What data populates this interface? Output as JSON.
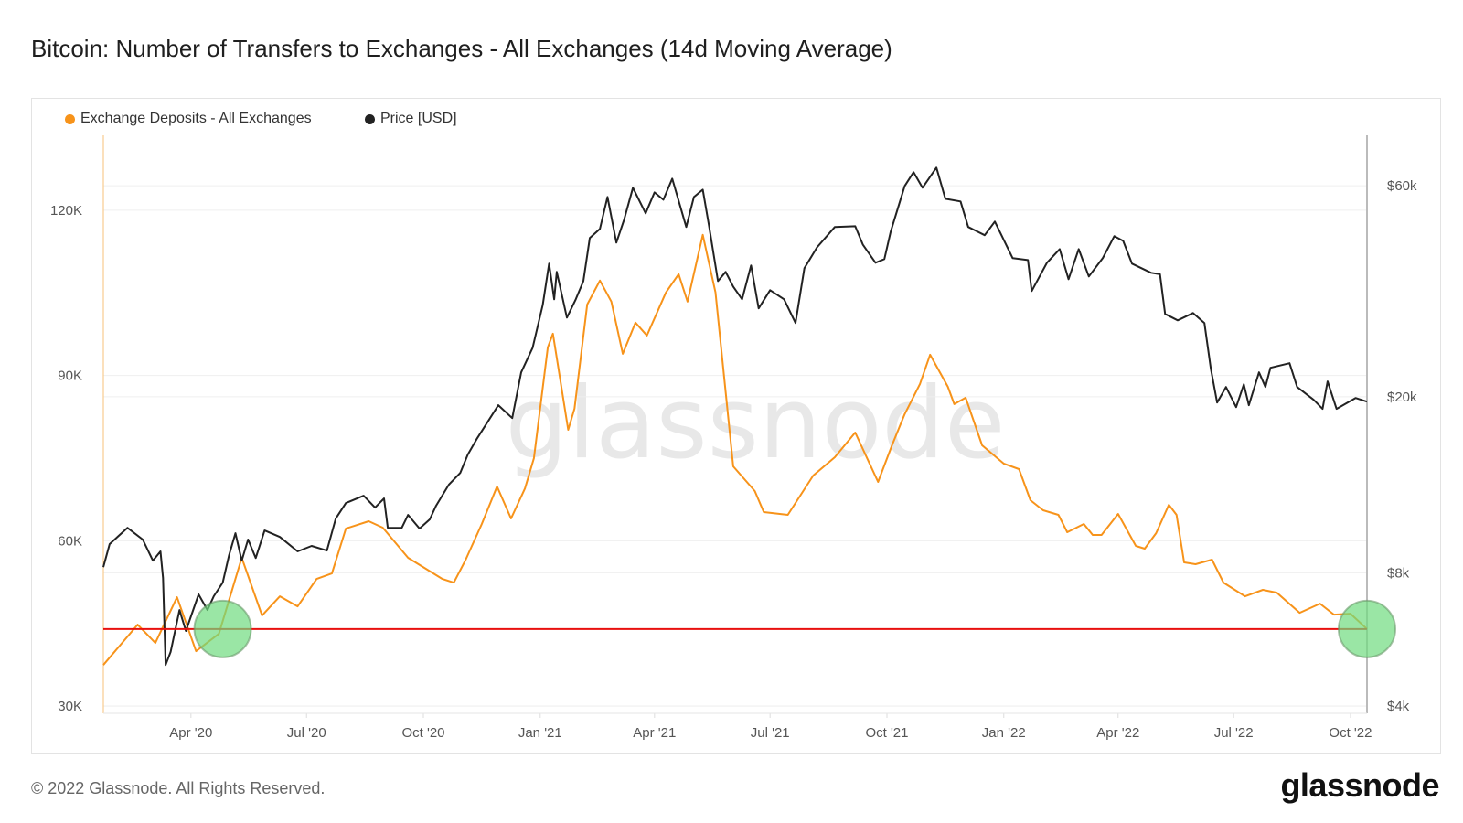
{
  "title": "Bitcoin: Number of Transfers to Exchanges - All Exchanges (14d Moving Average)",
  "footer": "© 2022 Glassnode. All Rights Reserved.",
  "logo": "glassnode",
  "watermark": "glassnode",
  "chart_data": {
    "type": "line",
    "title": "Bitcoin: Number of Transfers to Exchanges - All Exchanges (14d Moving Average)",
    "legend_position": "top-left",
    "grid": true,
    "x_range": [
      "2020-01-23",
      "2022-10-14"
    ],
    "x_ticks": [
      {
        "date": "2020-04-01",
        "label": "Apr '20"
      },
      {
        "date": "2020-07-01",
        "label": "Jul '20"
      },
      {
        "date": "2020-10-01",
        "label": "Oct '20"
      },
      {
        "date": "2021-01-01",
        "label": "Jan '21"
      },
      {
        "date": "2021-04-01",
        "label": "Apr '21"
      },
      {
        "date": "2021-07-01",
        "label": "Jul '21"
      },
      {
        "date": "2021-10-01",
        "label": "Oct '21"
      },
      {
        "date": "2022-01-01",
        "label": "Jan '22"
      },
      {
        "date": "2022-04-01",
        "label": "Apr '22"
      },
      {
        "date": "2022-07-01",
        "label": "Jul '22"
      },
      {
        "date": "2022-10-01",
        "label": "Oct '22"
      }
    ],
    "y_left": {
      "scale": "linear",
      "range": [
        28700,
        133600
      ],
      "ticks": [
        {
          "value": 30000,
          "label": "30K"
        },
        {
          "value": 60000,
          "label": "60K"
        },
        {
          "value": 90000,
          "label": "90K"
        },
        {
          "value": 120000,
          "label": "120K"
        }
      ]
    },
    "y_right": {
      "scale": "log",
      "range": [
        3850,
        78000
      ],
      "ticks": [
        {
          "value": 4000,
          "label": "$4k"
        },
        {
          "value": 8000,
          "label": "$8k"
        },
        {
          "value": 20000,
          "label": "$20k"
        },
        {
          "value": 60000,
          "label": "$60k"
        }
      ]
    },
    "reference_line": {
      "value": 44000,
      "axis": "left",
      "color": "#e8100f"
    },
    "highlights": [
      {
        "date": "2020-04-26",
        "value": 44000
      },
      {
        "date": "2022-10-14",
        "value": 44000
      }
    ],
    "highlight_color": "#6fdc7f",
    "series": [
      {
        "name": "Exchange Deposits - All Exchanges",
        "axis": "left",
        "color": "#f7931a",
        "points": [
          [
            "2020-01-23",
            37470
          ],
          [
            "2020-02-19",
            44780
          ],
          [
            "2020-03-04",
            41460
          ],
          [
            "2020-03-21",
            49770
          ],
          [
            "2020-04-05",
            39970
          ],
          [
            "2020-04-23",
            43120
          ],
          [
            "2020-05-11",
            56910
          ],
          [
            "2020-05-27",
            46440
          ],
          [
            "2020-06-10",
            49930
          ],
          [
            "2020-06-24",
            48100
          ],
          [
            "2020-07-09",
            53090
          ],
          [
            "2020-07-21",
            54080
          ],
          [
            "2020-08-01",
            62220
          ],
          [
            "2020-08-19",
            63550
          ],
          [
            "2020-08-30",
            62390
          ],
          [
            "2020-09-19",
            56910
          ],
          [
            "2020-10-16",
            53090
          ],
          [
            "2020-10-25",
            52420
          ],
          [
            "2020-11-03",
            56410
          ],
          [
            "2020-11-16",
            63050
          ],
          [
            "2020-11-28",
            69860
          ],
          [
            "2020-12-09",
            64050
          ],
          [
            "2020-12-20",
            69500
          ],
          [
            "2020-12-27",
            75000
          ],
          [
            "2021-01-07",
            95110
          ],
          [
            "2021-01-11",
            97600
          ],
          [
            "2021-01-23",
            80160
          ],
          [
            "2021-01-28",
            83980
          ],
          [
            "2021-02-07",
            102900
          ],
          [
            "2021-02-17",
            107240
          ],
          [
            "2021-02-26",
            103420
          ],
          [
            "2021-03-07",
            93950
          ],
          [
            "2021-03-17",
            99600
          ],
          [
            "2021-03-26",
            97270
          ],
          [
            "2021-04-10",
            105080
          ],
          [
            "2021-04-20",
            108400
          ],
          [
            "2021-04-27",
            103420
          ],
          [
            "2021-05-09",
            115540
          ],
          [
            "2021-05-19",
            105080
          ],
          [
            "2021-06-02",
            73520
          ],
          [
            "2021-06-19",
            69030
          ],
          [
            "2021-06-26",
            65210
          ],
          [
            "2021-07-15",
            64720
          ],
          [
            "2021-08-04",
            71860
          ],
          [
            "2021-08-21",
            75180
          ],
          [
            "2021-09-06",
            79660
          ],
          [
            "2021-09-24",
            70690
          ],
          [
            "2021-10-05",
            77340
          ],
          [
            "2021-10-15",
            82990
          ],
          [
            "2021-10-27",
            88470
          ],
          [
            "2021-11-04",
            93780
          ],
          [
            "2021-11-18",
            87970
          ],
          [
            "2021-11-23",
            84810
          ],
          [
            "2021-12-02",
            85980
          ],
          [
            "2021-12-15",
            77340
          ],
          [
            "2022-01-01",
            74020
          ],
          [
            "2022-01-13",
            73020
          ],
          [
            "2022-01-22",
            67370
          ],
          [
            "2022-02-01",
            65550
          ],
          [
            "2022-02-13",
            64720
          ],
          [
            "2022-02-20",
            61560
          ],
          [
            "2022-03-05",
            63050
          ],
          [
            "2022-03-12",
            61060
          ],
          [
            "2022-03-19",
            61060
          ],
          [
            "2022-04-01",
            64880
          ],
          [
            "2022-04-15",
            59070
          ],
          [
            "2022-04-22",
            58570
          ],
          [
            "2022-05-01",
            61390
          ],
          [
            "2022-05-11",
            66540
          ],
          [
            "2022-05-17",
            64720
          ],
          [
            "2022-05-23",
            56080
          ],
          [
            "2022-06-01",
            55750
          ],
          [
            "2022-06-14",
            56580
          ],
          [
            "2022-06-23",
            52420
          ],
          [
            "2022-07-10",
            49930
          ],
          [
            "2022-07-24",
            51100
          ],
          [
            "2022-08-04",
            50600
          ],
          [
            "2022-08-22",
            46940
          ],
          [
            "2022-09-07",
            48600
          ],
          [
            "2022-09-18",
            46610
          ],
          [
            "2022-10-01",
            46780
          ],
          [
            "2022-10-14",
            44000
          ]
        ]
      },
      {
        "name": "Price [USD]",
        "axis": "right",
        "color": "#222222",
        "points": [
          [
            "2020-01-23",
            8240
          ],
          [
            "2020-01-28",
            9290
          ],
          [
            "2020-02-11",
            10110
          ],
          [
            "2020-02-23",
            9510
          ],
          [
            "2020-03-02",
            8520
          ],
          [
            "2020-03-08",
            8940
          ],
          [
            "2020-03-10",
            7790
          ],
          [
            "2020-03-12",
            4950
          ],
          [
            "2020-03-16",
            5300
          ],
          [
            "2020-03-23",
            6590
          ],
          [
            "2020-03-28",
            5910
          ],
          [
            "2020-04-07",
            7150
          ],
          [
            "2020-04-14",
            6590
          ],
          [
            "2020-04-19",
            7080
          ],
          [
            "2020-04-26",
            7600
          ],
          [
            "2020-05-01",
            8770
          ],
          [
            "2020-05-06",
            9830
          ],
          [
            "2020-05-11",
            8520
          ],
          [
            "2020-05-16",
            9510
          ],
          [
            "2020-05-22",
            8640
          ],
          [
            "2020-05-29",
            9970
          ],
          [
            "2020-06-10",
            9640
          ],
          [
            "2020-06-24",
            8940
          ],
          [
            "2020-07-05",
            9200
          ],
          [
            "2020-07-17",
            8980
          ],
          [
            "2020-07-24",
            10610
          ],
          [
            "2020-08-01",
            11500
          ],
          [
            "2020-08-15",
            11950
          ],
          [
            "2020-08-24",
            11230
          ],
          [
            "2020-08-31",
            11780
          ],
          [
            "2020-09-03",
            10110
          ],
          [
            "2020-09-14",
            10110
          ],
          [
            "2020-09-19",
            10810
          ],
          [
            "2020-09-28",
            10070
          ],
          [
            "2020-10-06",
            10560
          ],
          [
            "2020-10-11",
            11340
          ],
          [
            "2020-10-21",
            12650
          ],
          [
            "2020-10-30",
            13450
          ],
          [
            "2020-11-05",
            14800
          ],
          [
            "2020-11-12",
            16040
          ],
          [
            "2020-11-29",
            19140
          ],
          [
            "2020-12-10",
            17900
          ],
          [
            "2020-12-17",
            22710
          ],
          [
            "2020-12-26",
            25810
          ],
          [
            "2021-01-03",
            32290
          ],
          [
            "2021-01-08",
            39990
          ],
          [
            "2021-01-12",
            33220
          ],
          [
            "2021-01-14",
            38320
          ],
          [
            "2021-01-22",
            30210
          ],
          [
            "2021-01-29",
            33220
          ],
          [
            "2021-02-04",
            36520
          ],
          [
            "2021-02-09",
            45700
          ],
          [
            "2021-02-17",
            47930
          ],
          [
            "2021-02-23",
            56600
          ],
          [
            "2021-03-02",
            44630
          ],
          [
            "2021-03-08",
            50250
          ],
          [
            "2021-03-15",
            59370
          ],
          [
            "2021-03-25",
            51960
          ],
          [
            "2021-04-01",
            57960
          ],
          [
            "2021-04-08",
            55790
          ],
          [
            "2021-04-15",
            62250
          ],
          [
            "2021-04-26",
            48400
          ],
          [
            "2021-05-02",
            56600
          ],
          [
            "2021-05-09",
            58800
          ],
          [
            "2021-05-14",
            48600
          ],
          [
            "2021-05-21",
            36520
          ],
          [
            "2021-05-27",
            38320
          ],
          [
            "2021-06-02",
            35500
          ],
          [
            "2021-06-09",
            33220
          ],
          [
            "2021-06-16",
            39610
          ],
          [
            "2021-06-22",
            31690
          ],
          [
            "2021-07-01",
            34840
          ],
          [
            "2021-07-12",
            33220
          ],
          [
            "2021-07-21",
            29370
          ],
          [
            "2021-07-28",
            39060
          ],
          [
            "2021-08-07",
            43560
          ],
          [
            "2021-08-21",
            48400
          ],
          [
            "2021-09-06",
            48600
          ],
          [
            "2021-09-12",
            44190
          ],
          [
            "2021-09-22",
            40190
          ],
          [
            "2021-09-29",
            40960
          ],
          [
            "2021-10-04",
            47250
          ],
          [
            "2021-10-15",
            59930
          ],
          [
            "2021-10-22",
            64370
          ],
          [
            "2021-10-29",
            59370
          ],
          [
            "2021-11-09",
            65940
          ],
          [
            "2021-11-16",
            56060
          ],
          [
            "2021-11-28",
            55280
          ],
          [
            "2021-12-04",
            48400
          ],
          [
            "2021-12-17",
            46370
          ],
          [
            "2021-12-25",
            49790
          ],
          [
            "2022-01-08",
            41150
          ],
          [
            "2022-01-20",
            40740
          ],
          [
            "2022-01-23",
            34680
          ],
          [
            "2022-02-04",
            40190
          ],
          [
            "2022-02-14",
            43150
          ],
          [
            "2022-02-21",
            36880
          ],
          [
            "2022-03-01",
            43150
          ],
          [
            "2022-03-09",
            37420
          ],
          [
            "2022-03-20",
            41200
          ],
          [
            "2022-03-29",
            46130
          ],
          [
            "2022-04-05",
            45040
          ],
          [
            "2022-04-12",
            39990
          ],
          [
            "2022-04-27",
            38130
          ],
          [
            "2022-05-04",
            37850
          ],
          [
            "2022-05-08",
            30790
          ],
          [
            "2022-05-18",
            29780
          ],
          [
            "2022-05-30",
            30930
          ],
          [
            "2022-06-08",
            29370
          ],
          [
            "2022-06-13",
            23150
          ],
          [
            "2022-06-18",
            19410
          ],
          [
            "2022-06-25",
            21040
          ],
          [
            "2022-07-03",
            18950
          ],
          [
            "2022-07-09",
            21340
          ],
          [
            "2022-07-13",
            19140
          ],
          [
            "2022-07-21",
            22710
          ],
          [
            "2022-07-26",
            21040
          ],
          [
            "2022-07-30",
            23260
          ],
          [
            "2022-08-14",
            23820
          ],
          [
            "2022-08-20",
            21040
          ],
          [
            "2022-09-02",
            19690
          ],
          [
            "2022-09-09",
            18780
          ],
          [
            "2022-09-13",
            21660
          ],
          [
            "2022-09-20",
            18780
          ],
          [
            "2022-10-05",
            19880
          ],
          [
            "2022-10-14",
            19500
          ]
        ]
      }
    ]
  }
}
